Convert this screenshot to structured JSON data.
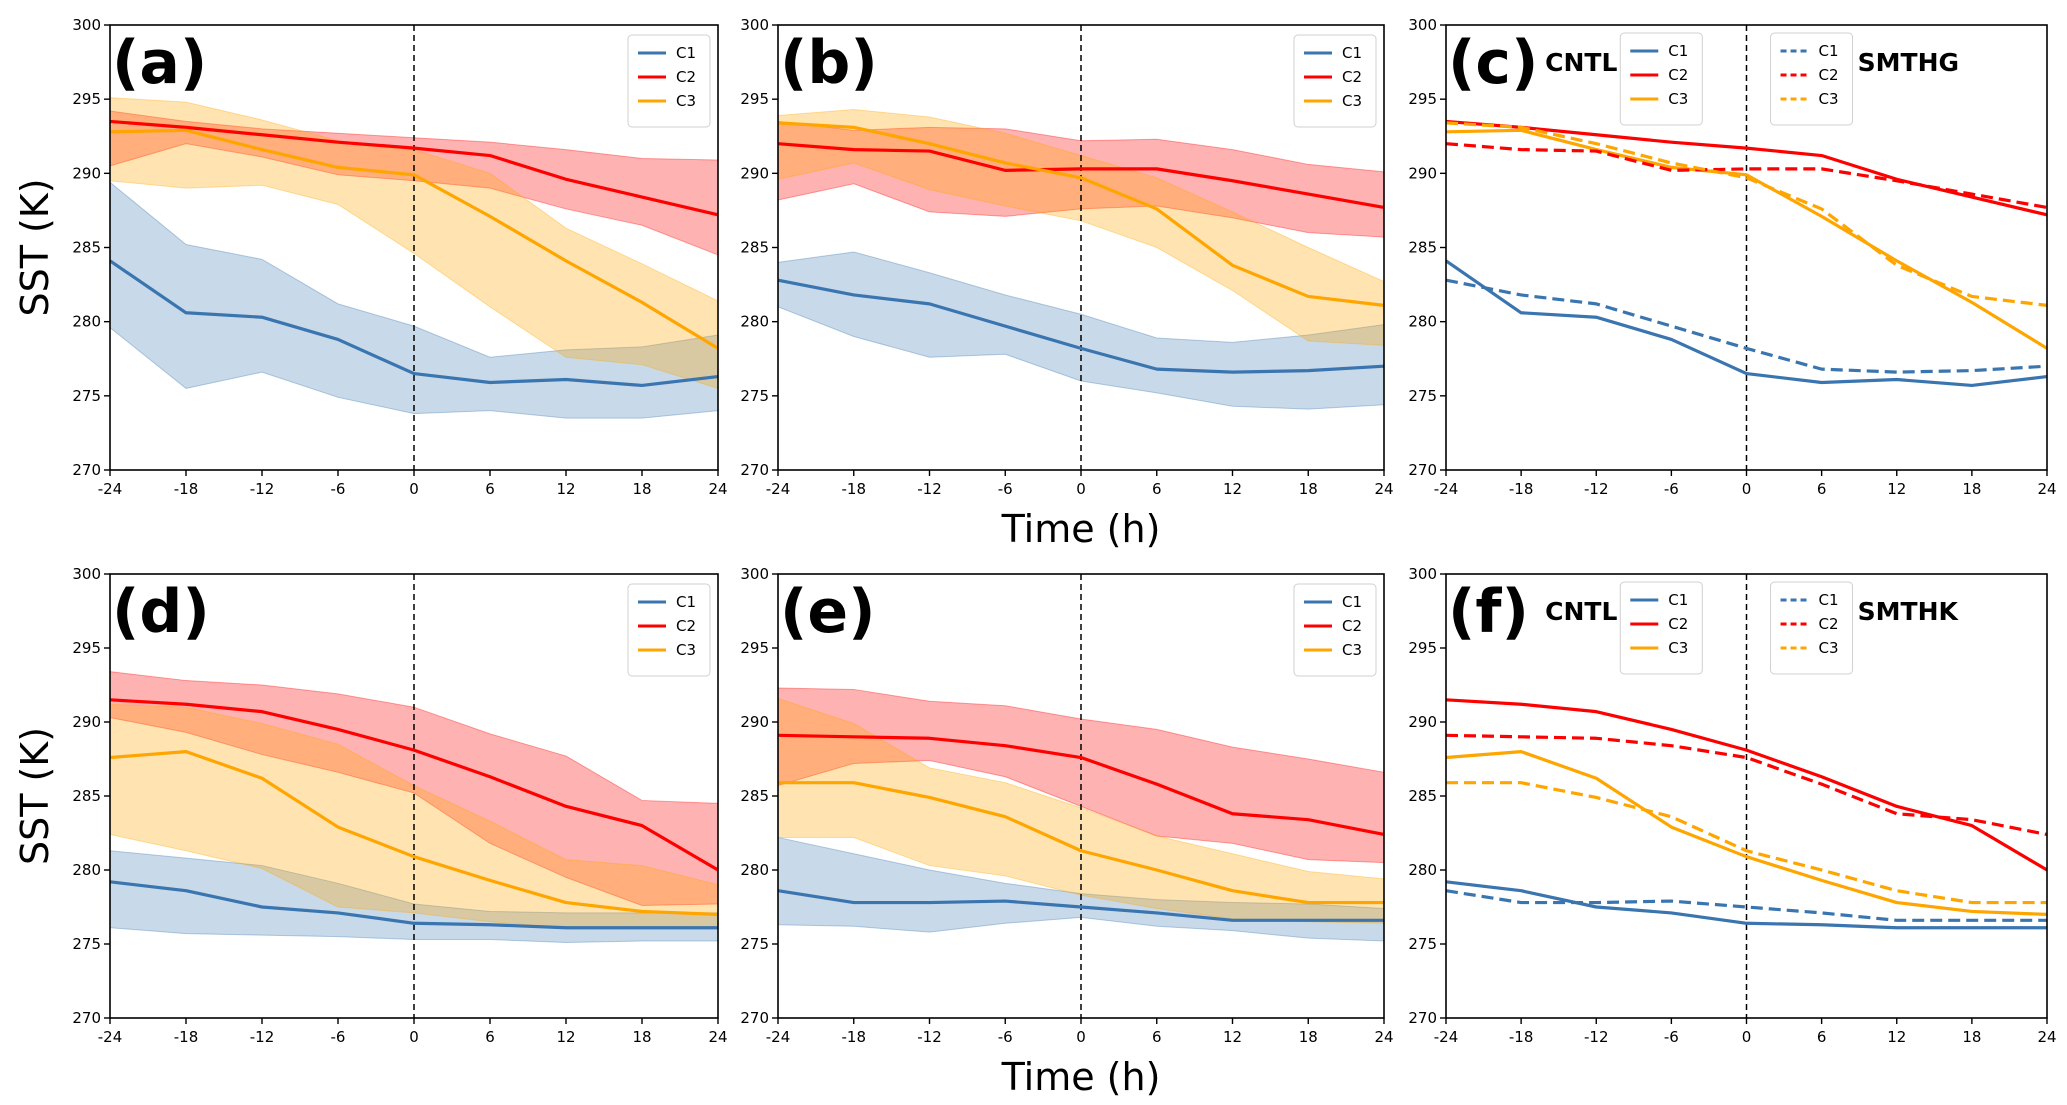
{
  "chart_data": [
    {
      "type": "line",
      "panel_label": "(a)",
      "x": [
        -24,
        -18,
        -12,
        -6,
        0,
        6,
        12,
        18,
        24
      ],
      "xlim": [
        -24,
        24
      ],
      "ylim": [
        270,
        300
      ],
      "xticks": [
        "-24",
        "-18",
        "-12",
        "-6",
        "0",
        "6",
        "12",
        "18",
        "24"
      ],
      "yticks": [
        "270",
        "275",
        "280",
        "285",
        "290",
        "295",
        "300"
      ],
      "xlabel": "",
      "ylabel": "SST (K)",
      "vline_x": 0,
      "legend": "top-right",
      "series": [
        {
          "name": "C1",
          "color": "#3a75b0",
          "style": "solid",
          "values": [
            284.1,
            280.6,
            280.3,
            278.8,
            276.5,
            275.9,
            276.1,
            275.7,
            276.3
          ],
          "band_lower": [
            279.6,
            275.5,
            276.6,
            274.9,
            273.8,
            274.0,
            273.5,
            273.5,
            274.0
          ],
          "band_upper": [
            289.4,
            285.2,
            284.2,
            281.2,
            279.7,
            277.6,
            278.1,
            278.3,
            279.1
          ]
        },
        {
          "name": "C2",
          "color": "#ff0000",
          "style": "solid",
          "values": [
            293.5,
            293.1,
            292.6,
            292.1,
            291.7,
            291.2,
            289.6,
            288.4,
            287.2
          ],
          "band_lower": [
            290.5,
            292.0,
            291.1,
            289.9,
            289.5,
            289.0,
            287.6,
            286.5,
            284.5
          ],
          "band_upper": [
            294.2,
            293.5,
            293.0,
            292.7,
            292.4,
            292.1,
            291.6,
            291.0,
            290.9
          ]
        },
        {
          "name": "C3",
          "color": "#ffa500",
          "style": "solid",
          "values": [
            292.8,
            292.9,
            291.6,
            290.4,
            289.9,
            287.1,
            284.1,
            281.3,
            278.2
          ],
          "band_lower": [
            289.5,
            289.0,
            289.2,
            287.9,
            284.6,
            281.0,
            277.6,
            277.1,
            275.5
          ],
          "band_upper": [
            295.1,
            294.8,
            293.6,
            292.2,
            291.6,
            290.0,
            286.3,
            283.9,
            281.4
          ]
        }
      ]
    },
    {
      "type": "line",
      "panel_label": "(b)",
      "x": [
        -24,
        -18,
        -12,
        -6,
        0,
        6,
        12,
        18,
        24
      ],
      "xlim": [
        -24,
        24
      ],
      "ylim": [
        270,
        300
      ],
      "xticks": [
        "-24",
        "-18",
        "-12",
        "-6",
        "0",
        "6",
        "12",
        "18",
        "24"
      ],
      "yticks": [
        "270",
        "275",
        "280",
        "285",
        "290",
        "295",
        "300"
      ],
      "xlabel": "Time (h)",
      "ylabel": "",
      "vline_x": 0,
      "legend": "top-right",
      "series": [
        {
          "name": "C1",
          "color": "#3a75b0",
          "style": "solid",
          "values": [
            282.8,
            281.8,
            281.2,
            279.7,
            278.2,
            276.8,
            276.6,
            276.7,
            277.0
          ],
          "band_lower": [
            281.0,
            279.0,
            277.6,
            277.8,
            276.0,
            275.2,
            274.3,
            274.1,
            274.4
          ],
          "band_upper": [
            284.0,
            284.7,
            283.3,
            281.8,
            280.5,
            278.9,
            278.6,
            279.1,
            279.8
          ]
        },
        {
          "name": "C2",
          "color": "#ff0000",
          "style": "solid",
          "values": [
            292.0,
            291.6,
            291.5,
            290.2,
            290.3,
            290.3,
            289.5,
            288.6,
            287.7
          ],
          "band_lower": [
            288.2,
            289.3,
            287.4,
            287.1,
            287.6,
            287.8,
            287.0,
            286.0,
            285.7
          ],
          "band_upper": [
            293.5,
            292.9,
            293.1,
            293.0,
            292.2,
            292.3,
            291.6,
            290.6,
            290.1
          ]
        },
        {
          "name": "C3",
          "color": "#ffa500",
          "style": "solid",
          "values": [
            293.4,
            293.1,
            292.0,
            290.7,
            289.7,
            287.6,
            283.8,
            281.7,
            281.1
          ],
          "band_lower": [
            289.6,
            290.7,
            288.9,
            287.8,
            286.8,
            285.0,
            282.1,
            278.7,
            278.4
          ],
          "band_upper": [
            293.9,
            294.3,
            293.8,
            292.7,
            291.2,
            289.7,
            287.4,
            285.0,
            282.7
          ]
        }
      ]
    },
    {
      "type": "line",
      "panel_label": "(c)",
      "annotations": [
        "CNTL",
        "SMTHG"
      ],
      "x": [
        -24,
        -18,
        -12,
        -6,
        0,
        6,
        12,
        18,
        24
      ],
      "xlim": [
        -24,
        24
      ],
      "ylim": [
        270,
        300
      ],
      "xticks": [
        "-24",
        "-18",
        "-12",
        "-6",
        "0",
        "6",
        "12",
        "18",
        "24"
      ],
      "yticks": [
        "270",
        "275",
        "280",
        "285",
        "290",
        "295",
        "300"
      ],
      "xlabel": "",
      "ylabel": "",
      "vline_x": 0,
      "legend": "top-center (two legends)",
      "series": [
        {
          "name": "C1",
          "group": "CNTL",
          "color": "#3a75b0",
          "style": "solid",
          "values": [
            284.1,
            280.6,
            280.3,
            278.8,
            276.5,
            275.9,
            276.1,
            275.7,
            276.3
          ]
        },
        {
          "name": "C2",
          "group": "CNTL",
          "color": "#ff0000",
          "style": "solid",
          "values": [
            293.5,
            293.1,
            292.6,
            292.1,
            291.7,
            291.2,
            289.6,
            288.4,
            287.2
          ]
        },
        {
          "name": "C3",
          "group": "CNTL",
          "color": "#ffa500",
          "style": "solid",
          "values": [
            292.8,
            292.9,
            291.6,
            290.4,
            289.9,
            287.1,
            284.1,
            281.3,
            278.2
          ]
        },
        {
          "name": "C1",
          "group": "SMTHG",
          "color": "#3a75b0",
          "style": "dashed",
          "values": [
            282.8,
            281.8,
            281.2,
            279.7,
            278.2,
            276.8,
            276.6,
            276.7,
            277.0
          ]
        },
        {
          "name": "C2",
          "group": "SMTHG",
          "color": "#ff0000",
          "style": "dashed",
          "values": [
            292.0,
            291.6,
            291.5,
            290.2,
            290.3,
            290.3,
            289.5,
            288.6,
            287.7
          ]
        },
        {
          "name": "C3",
          "group": "SMTHG",
          "color": "#ffa500",
          "style": "dashed",
          "values": [
            293.4,
            293.1,
            292.0,
            290.7,
            289.7,
            287.6,
            283.8,
            281.7,
            281.1
          ]
        }
      ]
    },
    {
      "type": "line",
      "panel_label": "(d)",
      "x": [
        -24,
        -18,
        -12,
        -6,
        0,
        6,
        12,
        18,
        24
      ],
      "xlim": [
        -24,
        24
      ],
      "ylim": [
        270,
        300
      ],
      "xticks": [
        "-24",
        "-18",
        "-12",
        "-6",
        "0",
        "6",
        "12",
        "18",
        "24"
      ],
      "yticks": [
        "270",
        "275",
        "280",
        "285",
        "290",
        "295",
        "300"
      ],
      "xlabel": "",
      "ylabel": "SST (K)",
      "vline_x": 0,
      "legend": "top-right",
      "series": [
        {
          "name": "C1",
          "color": "#3a75b0",
          "style": "solid",
          "values": [
            279.2,
            278.6,
            277.5,
            277.1,
            276.4,
            276.3,
            276.1,
            276.1,
            276.1
          ],
          "band_lower": [
            276.1,
            275.7,
            275.6,
            275.5,
            275.3,
            275.3,
            275.1,
            275.2,
            275.2
          ],
          "band_upper": [
            281.3,
            280.8,
            280.3,
            279.1,
            277.7,
            277.2,
            277.1,
            277.1,
            277.1
          ]
        },
        {
          "name": "C2",
          "color": "#ff0000",
          "style": "solid",
          "values": [
            291.5,
            291.2,
            290.7,
            289.5,
            288.1,
            286.3,
            284.3,
            283.0,
            280.0
          ],
          "band_lower": [
            290.3,
            289.3,
            287.8,
            286.6,
            285.2,
            281.8,
            279.5,
            277.6,
            277.7
          ],
          "band_upper": [
            293.4,
            292.8,
            292.5,
            291.9,
            291.0,
            289.2,
            287.7,
            284.7,
            284.5
          ]
        },
        {
          "name": "C3",
          "color": "#ffa500",
          "style": "solid",
          "values": [
            287.6,
            288.0,
            286.2,
            282.9,
            280.9,
            279.3,
            277.8,
            277.2,
            277.0
          ],
          "band_lower": [
            282.4,
            281.3,
            280.1,
            277.5,
            277.1,
            276.5,
            276.1,
            276.1,
            276.1
          ],
          "band_upper": [
            291.2,
            291.0,
            289.9,
            288.5,
            285.7,
            283.3,
            280.7,
            280.3,
            279.0
          ]
        }
      ]
    },
    {
      "type": "line",
      "panel_label": "(e)",
      "x": [
        -24,
        -18,
        -12,
        -6,
        0,
        6,
        12,
        18,
        24
      ],
      "xlim": [
        -24,
        24
      ],
      "ylim": [
        270,
        300
      ],
      "xticks": [
        "-24",
        "-18",
        "-12",
        "-6",
        "0",
        "6",
        "12",
        "18",
        "24"
      ],
      "yticks": [
        "270",
        "275",
        "280",
        "285",
        "290",
        "295",
        "300"
      ],
      "xlabel": "Time (h)",
      "ylabel": "",
      "vline_x": 0,
      "legend": "top-right",
      "series": [
        {
          "name": "C1",
          "color": "#3a75b0",
          "style": "solid",
          "values": [
            278.6,
            277.8,
            277.8,
            277.9,
            277.5,
            277.1,
            276.6,
            276.6,
            276.6
          ],
          "band_lower": [
            276.3,
            276.2,
            275.8,
            276.4,
            276.8,
            276.2,
            275.9,
            275.4,
            275.2
          ],
          "band_upper": [
            282.2,
            281.1,
            280.0,
            279.1,
            278.4,
            278.0,
            277.8,
            277.7,
            277.4
          ]
        },
        {
          "name": "C2",
          "color": "#ff0000",
          "style": "solid",
          "values": [
            289.1,
            289.0,
            288.9,
            288.4,
            287.6,
            285.8,
            283.8,
            283.4,
            282.4
          ],
          "band_lower": [
            285.7,
            287.2,
            287.4,
            286.3,
            284.3,
            282.3,
            281.8,
            280.7,
            280.5
          ],
          "band_upper": [
            292.3,
            292.2,
            291.4,
            291.1,
            290.2,
            289.5,
            288.3,
            287.5,
            286.6
          ]
        },
        {
          "name": "C3",
          "color": "#ffa500",
          "style": "solid",
          "values": [
            285.9,
            285.9,
            284.9,
            283.6,
            281.3,
            280.0,
            278.6,
            277.8,
            277.8
          ],
          "band_lower": [
            282.2,
            282.2,
            280.3,
            279.6,
            278.3,
            277.4,
            276.7,
            276.5,
            276.4
          ],
          "band_upper": [
            291.6,
            289.9,
            286.9,
            285.9,
            284.2,
            282.3,
            281.1,
            279.9,
            279.4
          ]
        }
      ]
    },
    {
      "type": "line",
      "panel_label": "(f)",
      "annotations": [
        "CNTL",
        "SMTHK"
      ],
      "x": [
        -24,
        -18,
        -12,
        -6,
        0,
        6,
        12,
        18,
        24
      ],
      "xlim": [
        -24,
        24
      ],
      "ylim": [
        270,
        300
      ],
      "xticks": [
        "-24",
        "-18",
        "-12",
        "-6",
        "0",
        "6",
        "12",
        "18",
        "24"
      ],
      "yticks": [
        "270",
        "275",
        "280",
        "285",
        "290",
        "295",
        "300"
      ],
      "xlabel": "",
      "ylabel": "",
      "vline_x": 0,
      "legend": "top-center (two legends)",
      "series": [
        {
          "name": "C1",
          "group": "CNTL",
          "color": "#3a75b0",
          "style": "solid",
          "values": [
            279.2,
            278.6,
            277.5,
            277.1,
            276.4,
            276.3,
            276.1,
            276.1,
            276.1
          ]
        },
        {
          "name": "C2",
          "group": "CNTL",
          "color": "#ff0000",
          "style": "solid",
          "values": [
            291.5,
            291.2,
            290.7,
            289.5,
            288.1,
            286.3,
            284.3,
            283.0,
            280.0
          ]
        },
        {
          "name": "C3",
          "group": "CNTL",
          "color": "#ffa500",
          "style": "solid",
          "values": [
            287.6,
            288.0,
            286.2,
            282.9,
            280.9,
            279.3,
            277.8,
            277.2,
            277.0
          ]
        },
        {
          "name": "C1",
          "group": "SMTHK",
          "color": "#3a75b0",
          "style": "dashed",
          "values": [
            278.6,
            277.8,
            277.8,
            277.9,
            277.5,
            277.1,
            276.6,
            276.6,
            276.6
          ]
        },
        {
          "name": "C2",
          "group": "SMTHK",
          "color": "#ff0000",
          "style": "dashed",
          "values": [
            289.1,
            289.0,
            288.9,
            288.4,
            287.6,
            285.8,
            283.8,
            283.4,
            282.4
          ]
        },
        {
          "name": "C3",
          "group": "SMTHK",
          "color": "#ffa500",
          "style": "dashed",
          "values": [
            285.9,
            285.9,
            284.9,
            283.6,
            281.3,
            280.0,
            278.6,
            277.8,
            277.8
          ]
        }
      ]
    }
  ]
}
